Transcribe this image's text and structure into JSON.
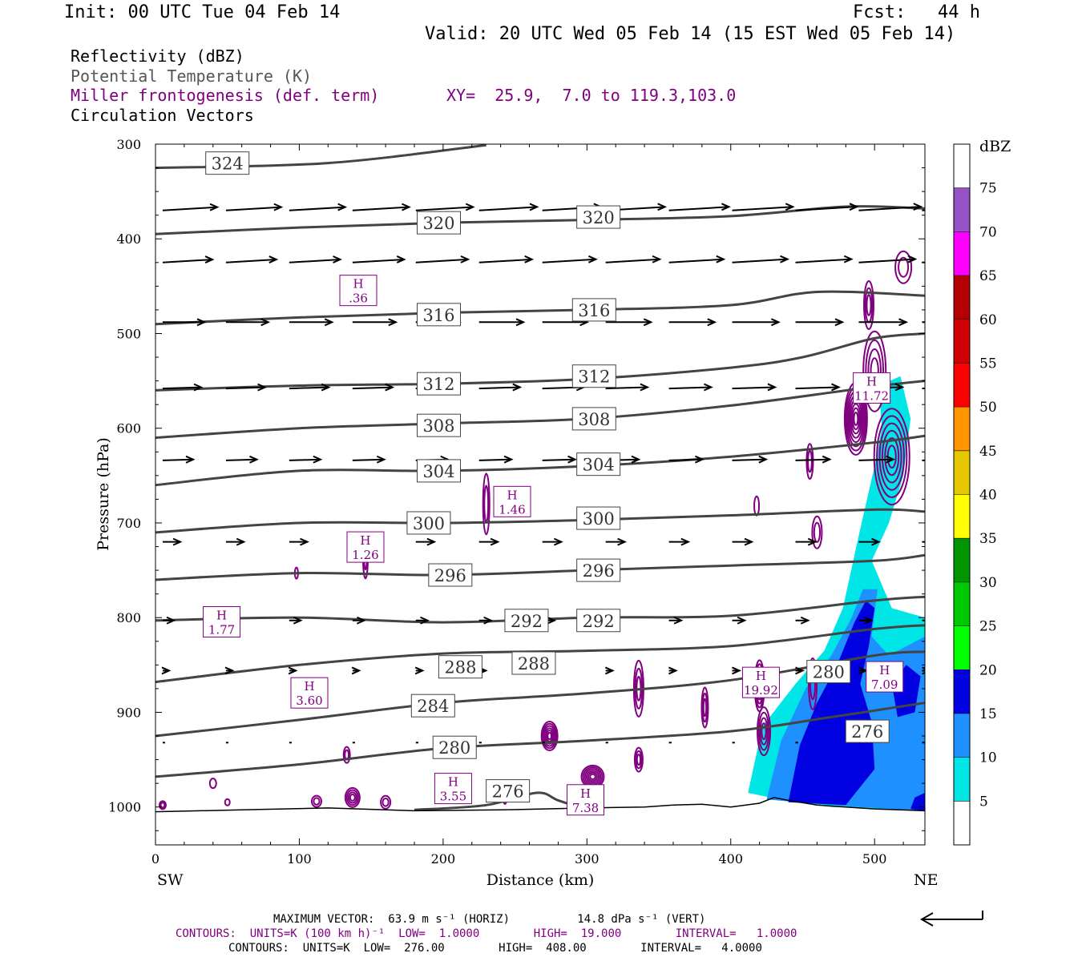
{
  "header": {
    "init": "Init: 00 UTC Tue 04 Feb 14",
    "fcst": "Fcst:   44 h",
    "valid": "Valid: 20 UTC Wed 05 Feb 14 (15 EST Wed 05 Feb 14)"
  },
  "legend": {
    "reflectivity": "Reflectivity (dBZ)",
    "theta": "Potential Temperature (K)",
    "frontogenesis": "Miller frontogenesis (def. term)",
    "xy": "XY=  25.9,  7.0 to 119.3,103.0",
    "vectors": "Circulation Vectors"
  },
  "footer": {
    "max_vector": "MAXIMUM VECTOR:  63.9 m s⁻¹ (HORIZ)          14.8 dPa s⁻¹ (VERT)",
    "contours_fronto": "CONTOURS:  UNITS=K (100 km h)⁻¹  LOW=  1.0000        HIGH=  19.000        INTERVAL=   1.0000",
    "contours_theta": "CONTOURS:  UNITS=K  LOW=  276.00        HIGH=  408.00        INTERVAL=   4.0000"
  },
  "colors": {
    "theta": "#444444",
    "fronto": "#800080",
    "vector": "#000000"
  },
  "chart_data": {
    "type": "cross-section",
    "xlabel": "Distance (km)",
    "ylabel": "Pressure (hPa)",
    "x_left_label": "SW",
    "x_right_label": "NE",
    "xlim": [
      0,
      535
    ],
    "ylim": [
      300,
      1040
    ],
    "x_ticks": [
      0,
      100,
      200,
      300,
      400,
      500
    ],
    "y_ticks": [
      300,
      400,
      500,
      600,
      700,
      800,
      900,
      1000
    ],
    "colorbar": {
      "unit": "dBZ",
      "levels": [
        5,
        10,
        15,
        20,
        25,
        30,
        35,
        40,
        45,
        50,
        55,
        60,
        65,
        70,
        75
      ],
      "colors": [
        "#ffffff",
        "#00e6e6",
        "#1e90ff",
        "#0000e0",
        "#00ff00",
        "#00c800",
        "#009600",
        "#ffff00",
        "#e6c800",
        "#ff9600",
        "#ff0000",
        "#d20000",
        "#b40000",
        "#ff00ff",
        "#9650c8",
        "#ffffff"
      ]
    },
    "theta_contours": [
      {
        "label": "324",
        "points": [
          [
            0,
            325
          ],
          [
            120,
            320
          ],
          [
            230,
            301
          ]
        ]
      },
      {
        "label": "320",
        "points": [
          [
            0,
            395
          ],
          [
            100,
            388
          ],
          [
            200,
            383
          ],
          [
            300,
            380
          ],
          [
            400,
            376
          ],
          [
            480,
            366
          ],
          [
            535,
            368
          ]
        ]
      },
      {
        "label": "316",
        "points": [
          [
            0,
            490
          ],
          [
            100,
            483
          ],
          [
            200,
            478
          ],
          [
            300,
            475
          ],
          [
            400,
            470
          ],
          [
            460,
            456
          ],
          [
            535,
            460
          ]
        ]
      },
      {
        "label": "312",
        "points": [
          [
            0,
            560
          ],
          [
            100,
            555
          ],
          [
            200,
            553
          ],
          [
            300,
            548
          ],
          [
            400,
            536
          ],
          [
            450,
            525
          ],
          [
            500,
            505
          ],
          [
            535,
            500
          ]
        ]
      },
      {
        "label": "308",
        "points": [
          [
            0,
            610
          ],
          [
            100,
            600
          ],
          [
            200,
            595
          ],
          [
            300,
            590
          ],
          [
            400,
            576
          ],
          [
            500,
            556
          ],
          [
            535,
            550
          ]
        ]
      },
      {
        "label": "304",
        "points": [
          [
            0,
            660
          ],
          [
            100,
            645
          ],
          [
            200,
            645
          ],
          [
            300,
            640
          ],
          [
            400,
            630
          ],
          [
            500,
            615
          ],
          [
            535,
            608
          ]
        ]
      },
      {
        "label": "300",
        "points": [
          [
            0,
            710
          ],
          [
            100,
            700
          ],
          [
            200,
            700
          ],
          [
            300,
            697
          ],
          [
            400,
            692
          ],
          [
            500,
            686
          ],
          [
            535,
            688
          ]
        ]
      },
      {
        "label": "296",
        "points": [
          [
            0,
            760
          ],
          [
            100,
            753
          ],
          [
            200,
            755
          ],
          [
            300,
            750
          ],
          [
            400,
            745
          ],
          [
            500,
            740
          ],
          [
            535,
            734
          ]
        ]
      },
      {
        "label": "292",
        "points": [
          [
            0,
            803
          ],
          [
            100,
            800
          ],
          [
            200,
            805
          ],
          [
            300,
            800
          ],
          [
            400,
            798
          ],
          [
            500,
            782
          ],
          [
            535,
            778
          ]
        ]
      },
      {
        "label": "288",
        "points": [
          [
            0,
            868
          ],
          [
            100,
            850
          ],
          [
            200,
            838
          ],
          [
            300,
            835
          ],
          [
            400,
            830
          ],
          [
            500,
            812
          ],
          [
            535,
            808
          ]
        ]
      },
      {
        "label": "284",
        "points": [
          [
            0,
            925
          ],
          [
            100,
            908
          ],
          [
            200,
            890
          ],
          [
            300,
            880
          ],
          [
            400,
            866
          ],
          [
            500,
            840
          ],
          [
            535,
            836
          ]
        ]
      },
      {
        "label": "280",
        "points": [
          [
            0,
            968
          ],
          [
            100,
            955
          ],
          [
            200,
            938
          ],
          [
            300,
            930
          ],
          [
            400,
            920
          ],
          [
            470,
            905
          ],
          [
            535,
            890
          ]
        ]
      },
      {
        "label": "276",
        "points": [
          [
            180,
            1003
          ],
          [
            230,
            998
          ],
          [
            265,
            985
          ],
          [
            280,
            993
          ],
          [
            300,
            1003
          ]
        ]
      }
    ],
    "theta_labels": [
      {
        "text": "324",
        "x": 50,
        "p": 320
      },
      {
        "text": "320",
        "x": 197,
        "p": 383
      },
      {
        "text": "320",
        "x": 308,
        "p": 377
      },
      {
        "text": "316",
        "x": 197,
        "p": 480
      },
      {
        "text": "316",
        "x": 305,
        "p": 475
      },
      {
        "text": "312",
        "x": 197,
        "p": 553
      },
      {
        "text": "312",
        "x": 305,
        "p": 545
      },
      {
        "text": "308",
        "x": 197,
        "p": 597
      },
      {
        "text": "308",
        "x": 305,
        "p": 590
      },
      {
        "text": "304",
        "x": 197,
        "p": 645
      },
      {
        "text": "304",
        "x": 308,
        "p": 638
      },
      {
        "text": "300",
        "x": 190,
        "p": 700
      },
      {
        "text": "300",
        "x": 308,
        "p": 695
      },
      {
        "text": "296",
        "x": 205,
        "p": 755
      },
      {
        "text": "296",
        "x": 308,
        "p": 750
      },
      {
        "text": "292",
        "x": 258,
        "p": 803
      },
      {
        "text": "292",
        "x": 308,
        "p": 803
      },
      {
        "text": "288",
        "x": 212,
        "p": 852
      },
      {
        "text": "288",
        "x": 263,
        "p": 848
      },
      {
        "text": "284",
        "x": 193,
        "p": 893
      },
      {
        "text": "280",
        "x": 208,
        "p": 937
      },
      {
        "text": "280",
        "x": 468,
        "p": 857
      },
      {
        "text": "276",
        "x": 245,
        "p": 983
      },
      {
        "text": "276",
        "x": 495,
        "p": 920
      }
    ],
    "fronto_maxima": [
      {
        "value": ".36",
        "x": 141,
        "p": 457
      },
      {
        "value": "11.72",
        "x": 498,
        "p": 560
      },
      {
        "value": "1.46",
        "x": 248,
        "p": 680
      },
      {
        "value": "1.26",
        "x": 146,
        "p": 728
      },
      {
        "value": "1.77",
        "x": 46,
        "p": 807
      },
      {
        "value": "3.60",
        "x": 107,
        "p": 882
      },
      {
        "value": "19.92",
        "x": 421,
        "p": 871
      },
      {
        "value": "7.09",
        "x": 507,
        "p": 865
      },
      {
        "value": "3.55",
        "x": 207,
        "p": 983
      },
      {
        "value": "7.38",
        "x": 299,
        "p": 995
      }
    ],
    "ground_surface": [
      [
        0,
        1005
      ],
      [
        60,
        1003
      ],
      [
        120,
        1001
      ],
      [
        180,
        1004
      ],
      [
        240,
        1003
      ],
      [
        300,
        1001
      ],
      [
        340,
        1000
      ],
      [
        360,
        998
      ],
      [
        380,
        997
      ],
      [
        400,
        1000
      ],
      [
        420,
        996
      ],
      [
        430,
        990
      ],
      [
        440,
        993
      ],
      [
        460,
        998
      ],
      [
        480,
        1000
      ],
      [
        500,
        1002
      ],
      [
        535,
        1004
      ]
    ]
  }
}
